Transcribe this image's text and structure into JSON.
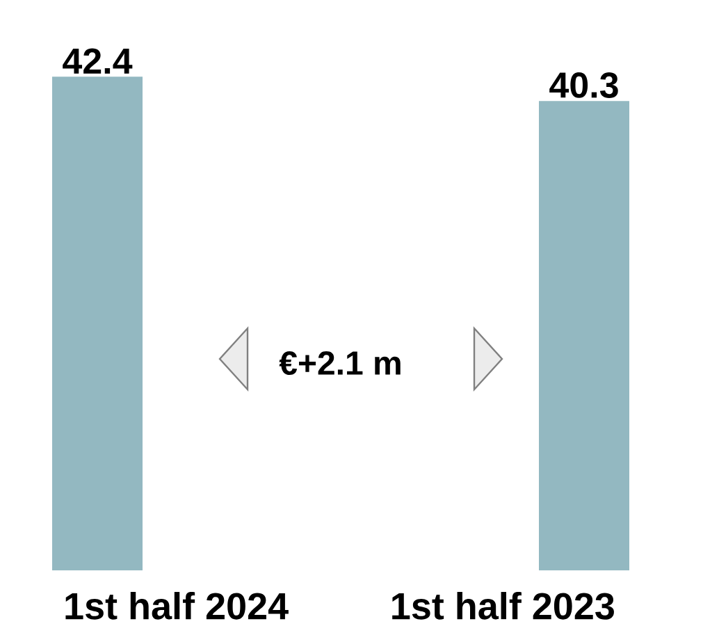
{
  "chart_data": {
    "type": "bar",
    "categories": [
      "1st half 2024",
      "1st half 2023"
    ],
    "values": [
      42.4,
      40.3
    ],
    "color": "#93b8c1",
    "data_labels": true,
    "annotations": [
      "€+2.1 m"
    ]
  }
}
